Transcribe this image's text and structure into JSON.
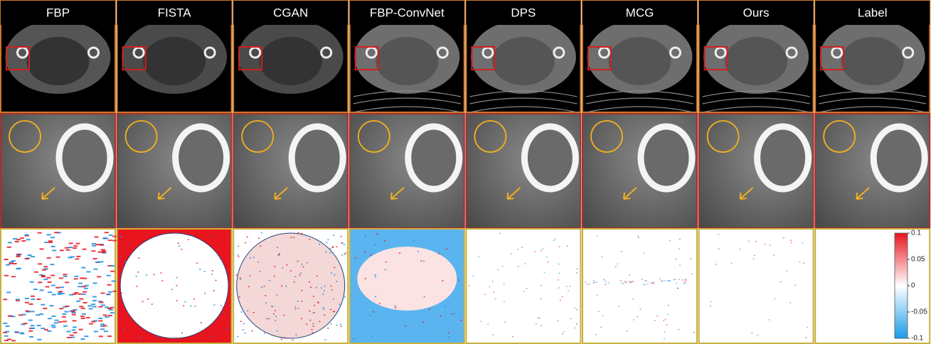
{
  "columns": [
    "FBP",
    "FISTA",
    "CGAN",
    "FBP-ConvNet",
    "DPS",
    "MCG",
    "Ours",
    "Label"
  ],
  "colorbar": {
    "ticks": [
      0.1,
      0.05,
      0,
      -0.05,
      -0.1
    ]
  }
}
